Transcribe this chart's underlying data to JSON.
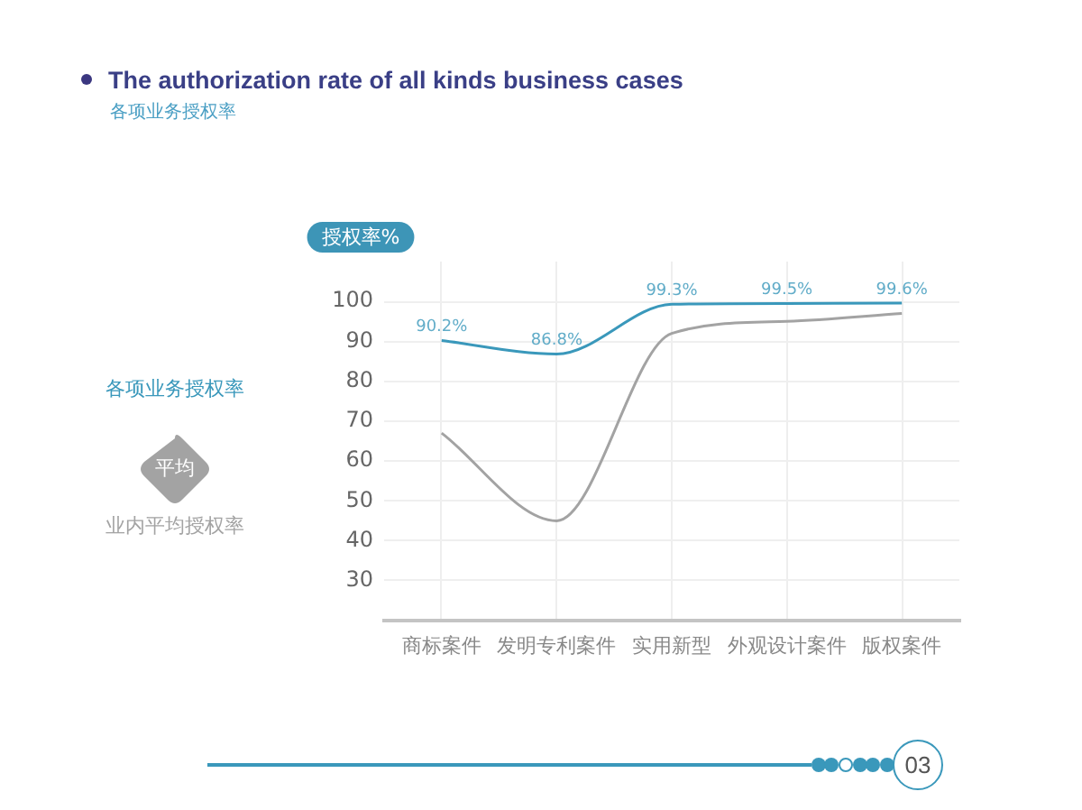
{
  "chart_data": {
    "type": "line",
    "title": "The authorization rate of all kinds business cases",
    "subtitle": "各项业务授权率",
    "ylabel": "授权率%",
    "categories": [
      "商标案件",
      "发明专利案件",
      "实用新型",
      "外观设计案件",
      "版权案件"
    ],
    "series": [
      {
        "name": "各项业务授权率",
        "color": "#3a98bb",
        "values": [
          90.2,
          86.8,
          99.3,
          99.5,
          99.6
        ],
        "value_labels": [
          "90.2%",
          "86.8%",
          "99.3%",
          "99.5%",
          "99.6%"
        ]
      },
      {
        "name": "业内平均授权率",
        "color": "#a3a3a3",
        "values": [
          67,
          45,
          92,
          95,
          97
        ]
      }
    ],
    "ylim": [
      20,
      110
    ],
    "yticks": [
      30,
      40,
      50,
      60,
      70,
      80,
      90,
      100
    ],
    "grid": true,
    "legend": "left",
    "marker": "none",
    "annotations": [
      "平均",
      "03"
    ]
  }
}
